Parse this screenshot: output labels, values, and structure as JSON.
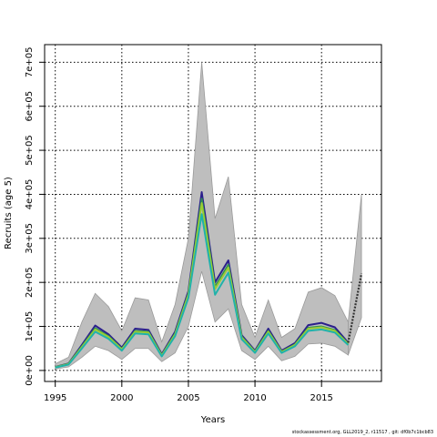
{
  "chart_data": {
    "type": "line",
    "xlabel": "Years",
    "ylabel": "Recruits (age 5)",
    "xlim": [
      1994.2,
      2019.5
    ],
    "ylim": [
      -25000,
      740000
    ],
    "x_ticks": [
      1995,
      2000,
      2005,
      2010,
      2015
    ],
    "x_tick_labels": [
      "1995",
      "2000",
      "2005",
      "2010",
      "2015"
    ],
    "y_ticks": [
      0,
      100000,
      200000,
      300000,
      400000,
      500000,
      600000,
      700000
    ],
    "y_tick_labels": [
      "0e+00",
      "1e+05",
      "2e+05",
      "3e+05",
      "4e+05",
      "5e+05",
      "6e+05",
      "7e+05"
    ],
    "grid": "dotted",
    "colors": {
      "band": "#bebebe",
      "band_edge": "#9a9a9a",
      "forecast": "#333333"
    },
    "x": [
      1995,
      1996,
      1997,
      1998,
      1999,
      2000,
      2001,
      2002,
      2003,
      2004,
      2005,
      2006,
      2007,
      2008,
      2009,
      2010,
      2011,
      2012,
      2013,
      2014,
      2015,
      2016,
      2017
    ],
    "band_upper": [
      15000,
      30000,
      110000,
      175000,
      145000,
      90000,
      165000,
      160000,
      65000,
      150000,
      300000,
      700000,
      345000,
      440000,
      150000,
      75000,
      160000,
      75000,
      95000,
      178000,
      188000,
      170000,
      110000
    ],
    "band_lower": [
      3000,
      8000,
      30000,
      55000,
      45000,
      25000,
      50000,
      50000,
      20000,
      40000,
      100000,
      225000,
      110000,
      140000,
      45000,
      25000,
      55000,
      22000,
      32000,
      60000,
      62000,
      55000,
      35000
    ],
    "series": [
      {
        "name": "",
        "color": "#2b1f8c",
        "values": [
          8000,
          16000,
          58000,
          102000,
          82000,
          52000,
          95000,
          92000,
          37000,
          88000,
          180000,
          405000,
          200000,
          250000,
          80000,
          45000,
          95000,
          45000,
          62000,
          103000,
          108000,
          98000,
          63000
        ]
      },
      {
        "name": "",
        "color": "#2e8b57",
        "values": [
          7500,
          15000,
          55000,
          96000,
          78000,
          49000,
          90000,
          88000,
          35000,
          84000,
          175000,
          390000,
          190000,
          240000,
          77000,
          43000,
          90000,
          43000,
          59000,
          97000,
          100000,
          92000,
          61000
        ]
      },
      {
        "name": "",
        "color": "#9acd32",
        "values": [
          7000,
          14500,
          53000,
          93000,
          76000,
          48000,
          88000,
          86000,
          34000,
          82000,
          172000,
          380000,
          185000,
          234000,
          75000,
          42000,
          88000,
          42000,
          58000,
          95000,
          98000,
          90000,
          60000
        ]
      },
      {
        "name": "",
        "color": "#20b2aa",
        "values": [
          6500,
          13500,
          50000,
          88000,
          72000,
          45000,
          84000,
          82000,
          32000,
          78000,
          165000,
          355000,
          172000,
          222000,
          71000,
          40000,
          84000,
          40000,
          55000,
          90000,
          93000,
          86000,
          58000
        ]
      }
    ],
    "forecast": {
      "x": [
        2017,
        2018
      ],
      "values": [
        63000,
        220000
      ],
      "upper": [
        110000,
        400000
      ],
      "lower": [
        35000,
        120000
      ]
    }
  },
  "footer": {
    "text": "stockassessment.org, GLL2019_2, r11517 , git: df0b7c1bcb83"
  }
}
